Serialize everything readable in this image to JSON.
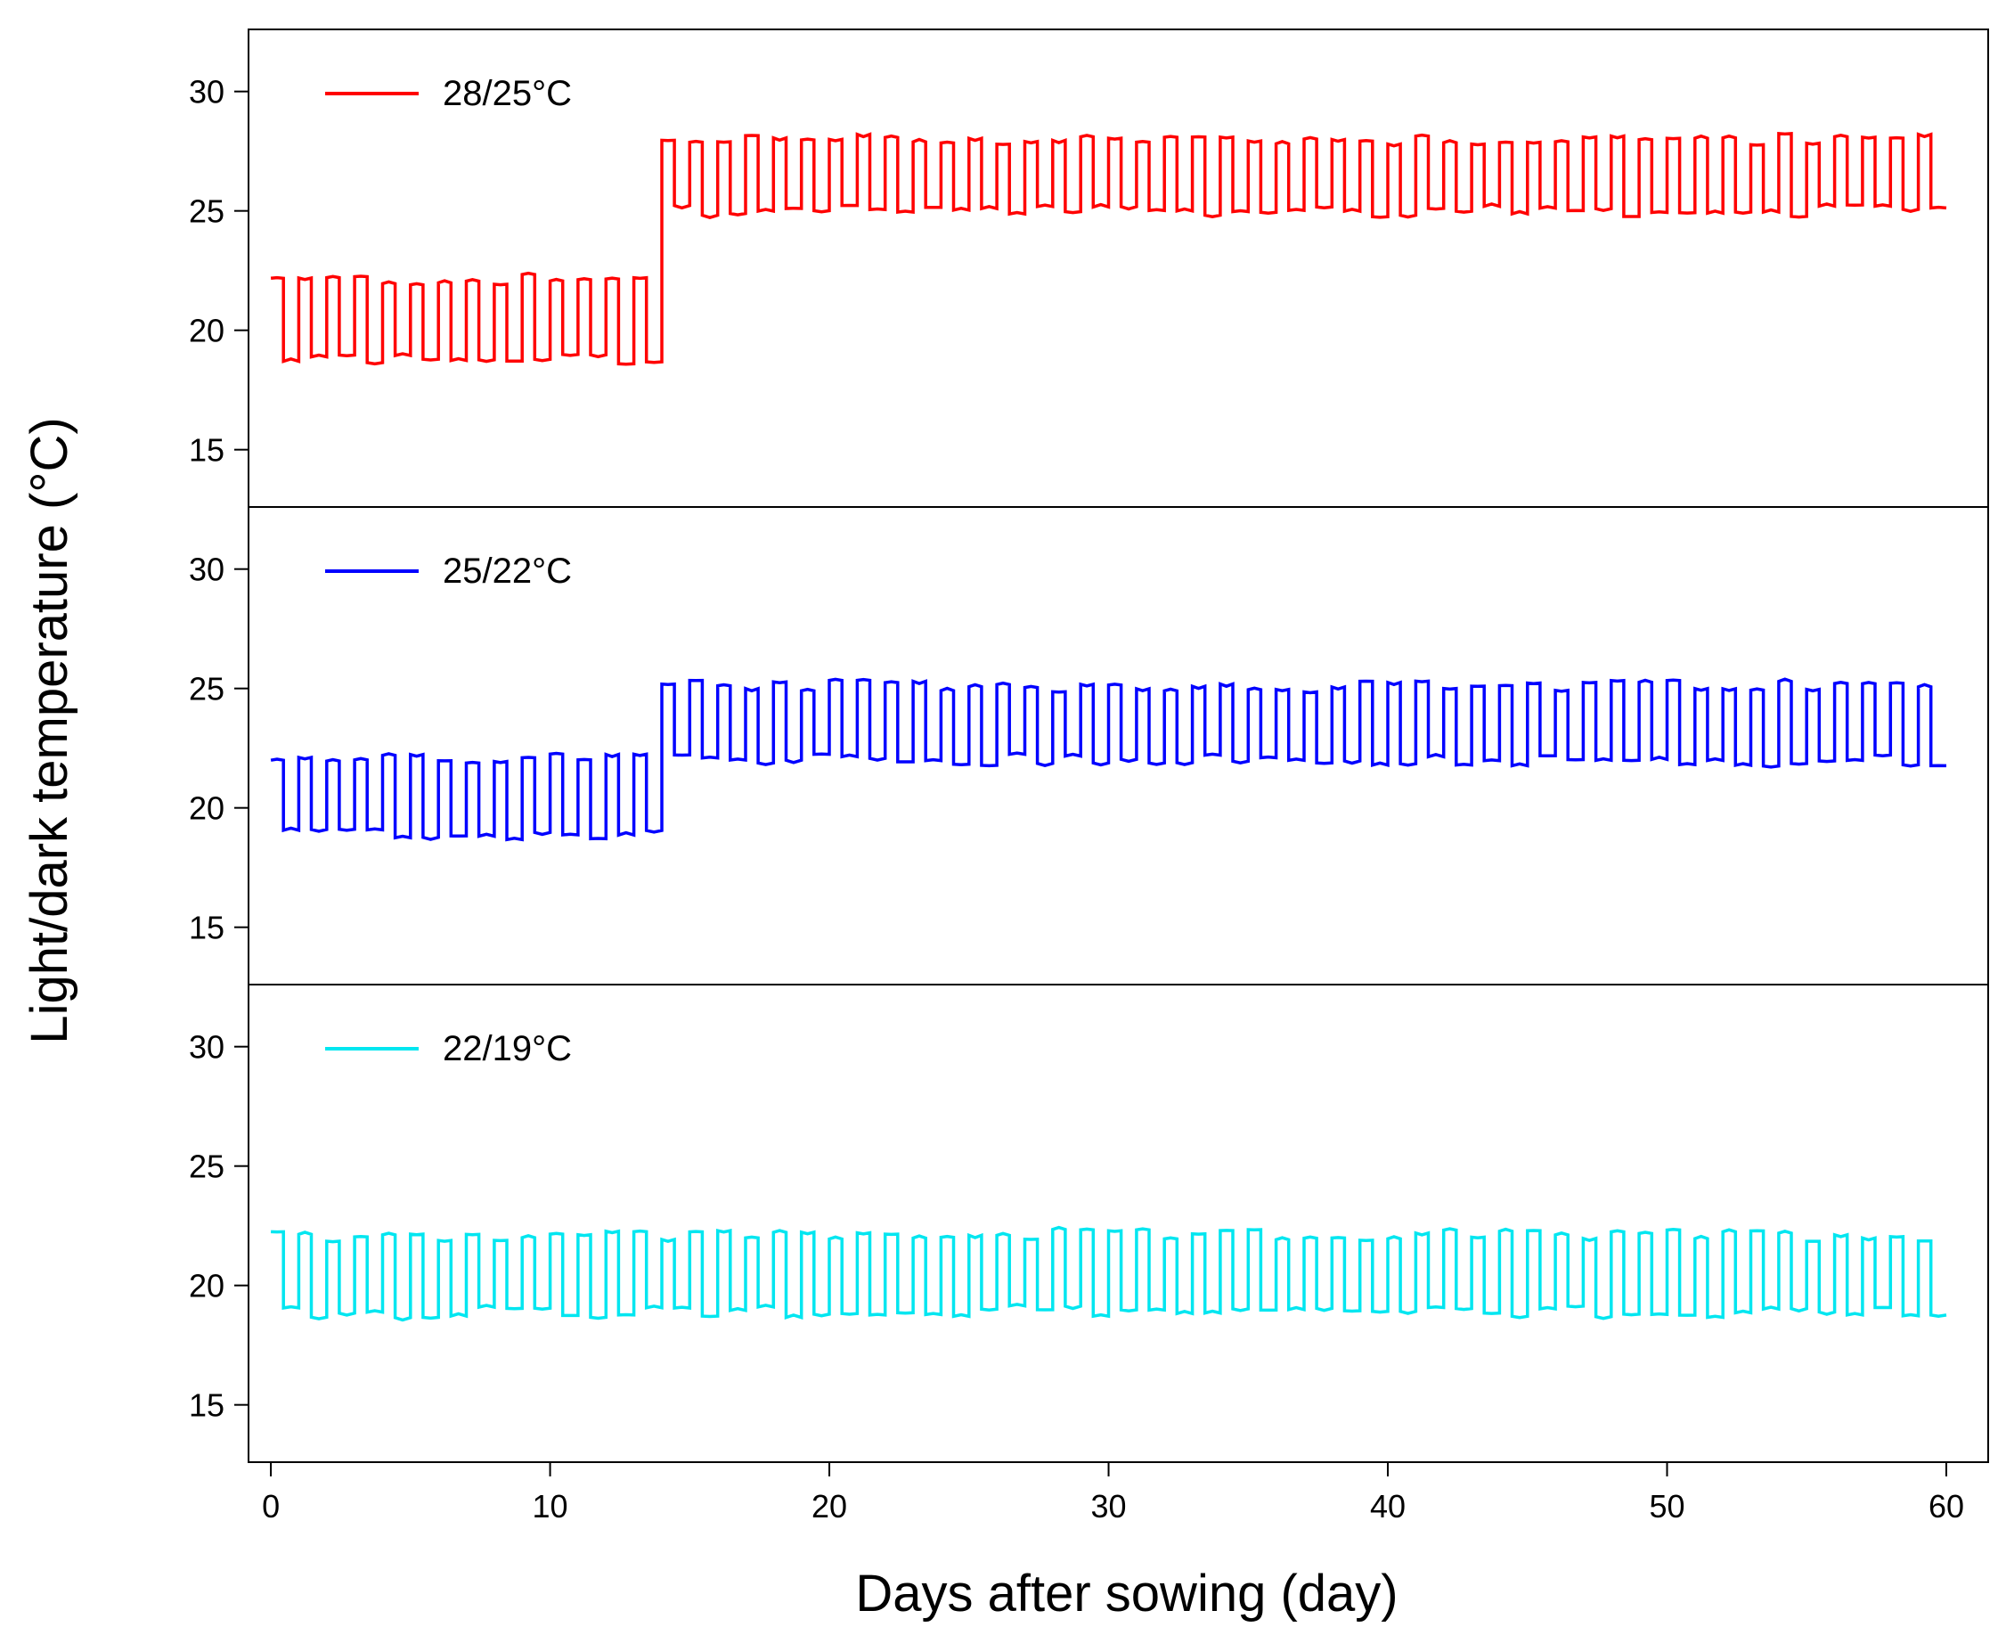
{
  "chart_data": {
    "type": "line",
    "title": "",
    "xlabel": "Days after sowing (day)",
    "ylabel": "Light/dark temperature (°C)",
    "xlim": [
      -0.8,
      61.5
    ],
    "ylim": [
      12.6,
      32.6
    ],
    "xticks": [
      0,
      10,
      20,
      30,
      40,
      50,
      60
    ],
    "xtick_labels": [
      "0",
      "10",
      "20",
      "30",
      "40",
      "50",
      "60"
    ],
    "yticks": [
      15,
      20,
      25,
      30
    ],
    "ytick_labels": [
      "15",
      "20",
      "25",
      "30"
    ],
    "grid": false,
    "legend_position": "top-left",
    "panels": [
      {
        "name": "28/25°C",
        "color": "#ff0000",
        "series_description": "daily square-wave cycle between light and dark temperatures",
        "segments": [
          {
            "day_start": 0,
            "day_end": 14,
            "light_temp": 22.1,
            "dark_temp": 18.8
          },
          {
            "day_start": 14,
            "day_end": 60,
            "light_temp": 28.0,
            "dark_temp": 25.0
          }
        ]
      },
      {
        "name": "25/22°C",
        "color": "#0000ff",
        "segments": [
          {
            "day_start": 0,
            "day_end": 14,
            "light_temp": 22.1,
            "dark_temp": 18.9
          },
          {
            "day_start": 14,
            "day_end": 60,
            "light_temp": 25.1,
            "dark_temp": 22.0
          }
        ]
      },
      {
        "name": "22/19°C",
        "color": "#00e6f0",
        "segments": [
          {
            "day_start": 0,
            "day_end": 60,
            "light_temp": 22.1,
            "dark_temp": 18.9
          }
        ]
      }
    ]
  }
}
